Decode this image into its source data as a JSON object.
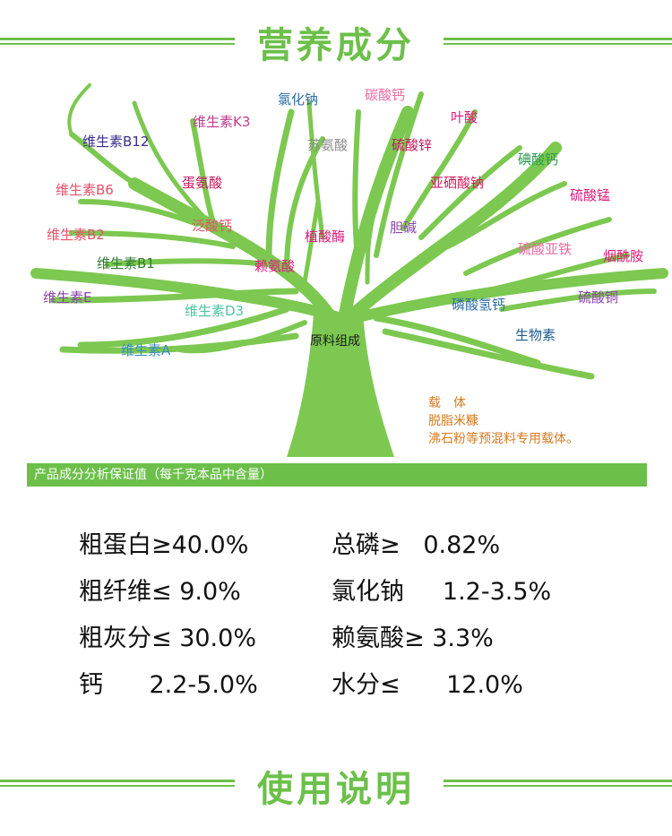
{
  "header_top": {
    "title": "营养成分"
  },
  "tree": {
    "trunk_label": "原料组成",
    "labels": [
      {
        "text": "氯化钠",
        "color": "#2e6ea6"
      },
      {
        "text": "碳酸钙",
        "color": "#f06aa0"
      },
      {
        "text": "叶酸",
        "color": "#e0197d"
      },
      {
        "text": "维生素K3",
        "color": "#c23b8c"
      },
      {
        "text": "苏氨酸",
        "color": "#8c8c8c"
      },
      {
        "text": "硫酸锌",
        "color": "#c2185b"
      },
      {
        "text": "维生素B12",
        "color": "#3a2e8c"
      },
      {
        "text": "碘酸钙",
        "color": "#2e9b4e"
      },
      {
        "text": "亚硒酸钠",
        "color": "#d81b60"
      },
      {
        "text": "蛋氨酸",
        "color": "#c2185b"
      },
      {
        "text": "硫酸锰",
        "color": "#e0197d"
      },
      {
        "text": "维生素B6",
        "color": "#e8506a"
      },
      {
        "text": "泛酸钙",
        "color": "#e8506a"
      },
      {
        "text": "植酸酶",
        "color": "#e0197d"
      },
      {
        "text": "胆碱",
        "color": "#8e44ad"
      },
      {
        "text": "维生素B2",
        "color": "#e8506a"
      },
      {
        "text": "硫酸亚铁",
        "color": "#f06aa0"
      },
      {
        "text": "烟酰胺",
        "color": "#e0197d"
      },
      {
        "text": "维生素B1",
        "color": "#2e7d32"
      },
      {
        "text": "赖氨酸",
        "color": "#e0197d"
      },
      {
        "text": "维生素E",
        "color": "#8e44ad"
      },
      {
        "text": "硫酸铜",
        "color": "#8e44ad"
      },
      {
        "text": "磷酸氢钙",
        "color": "#2e6ea6"
      },
      {
        "text": "维生素D3",
        "color": "#4fc3a1"
      },
      {
        "text": "生物素",
        "color": "#1e5a8c"
      },
      {
        "text": "维生素A",
        "color": "#3a8cc8"
      }
    ]
  },
  "carrier": {
    "line1": "载　体",
    "line2": "脱脂米糠",
    "line3": "沸石粉等预混料专用载体。"
  },
  "analysis": {
    "banner": "产品成分分析保证值（每千克本品中含量）",
    "left": [
      "粗蛋白≥40.0%",
      "粗纤维≤  9.0%",
      "粗灰分≤  30.0%",
      "钙      2.2-5.0%"
    ],
    "right": [
      "总磷≥   0.82%",
      "氯化钠     1.2-3.5%",
      "赖氨酸≥ 3.3%",
      "水分≤      12.0%"
    ]
  },
  "header_bottom": {
    "title": "使用说明"
  },
  "colors": {
    "accent": "#6cc04a",
    "carrier_text": "#d77a1f"
  }
}
